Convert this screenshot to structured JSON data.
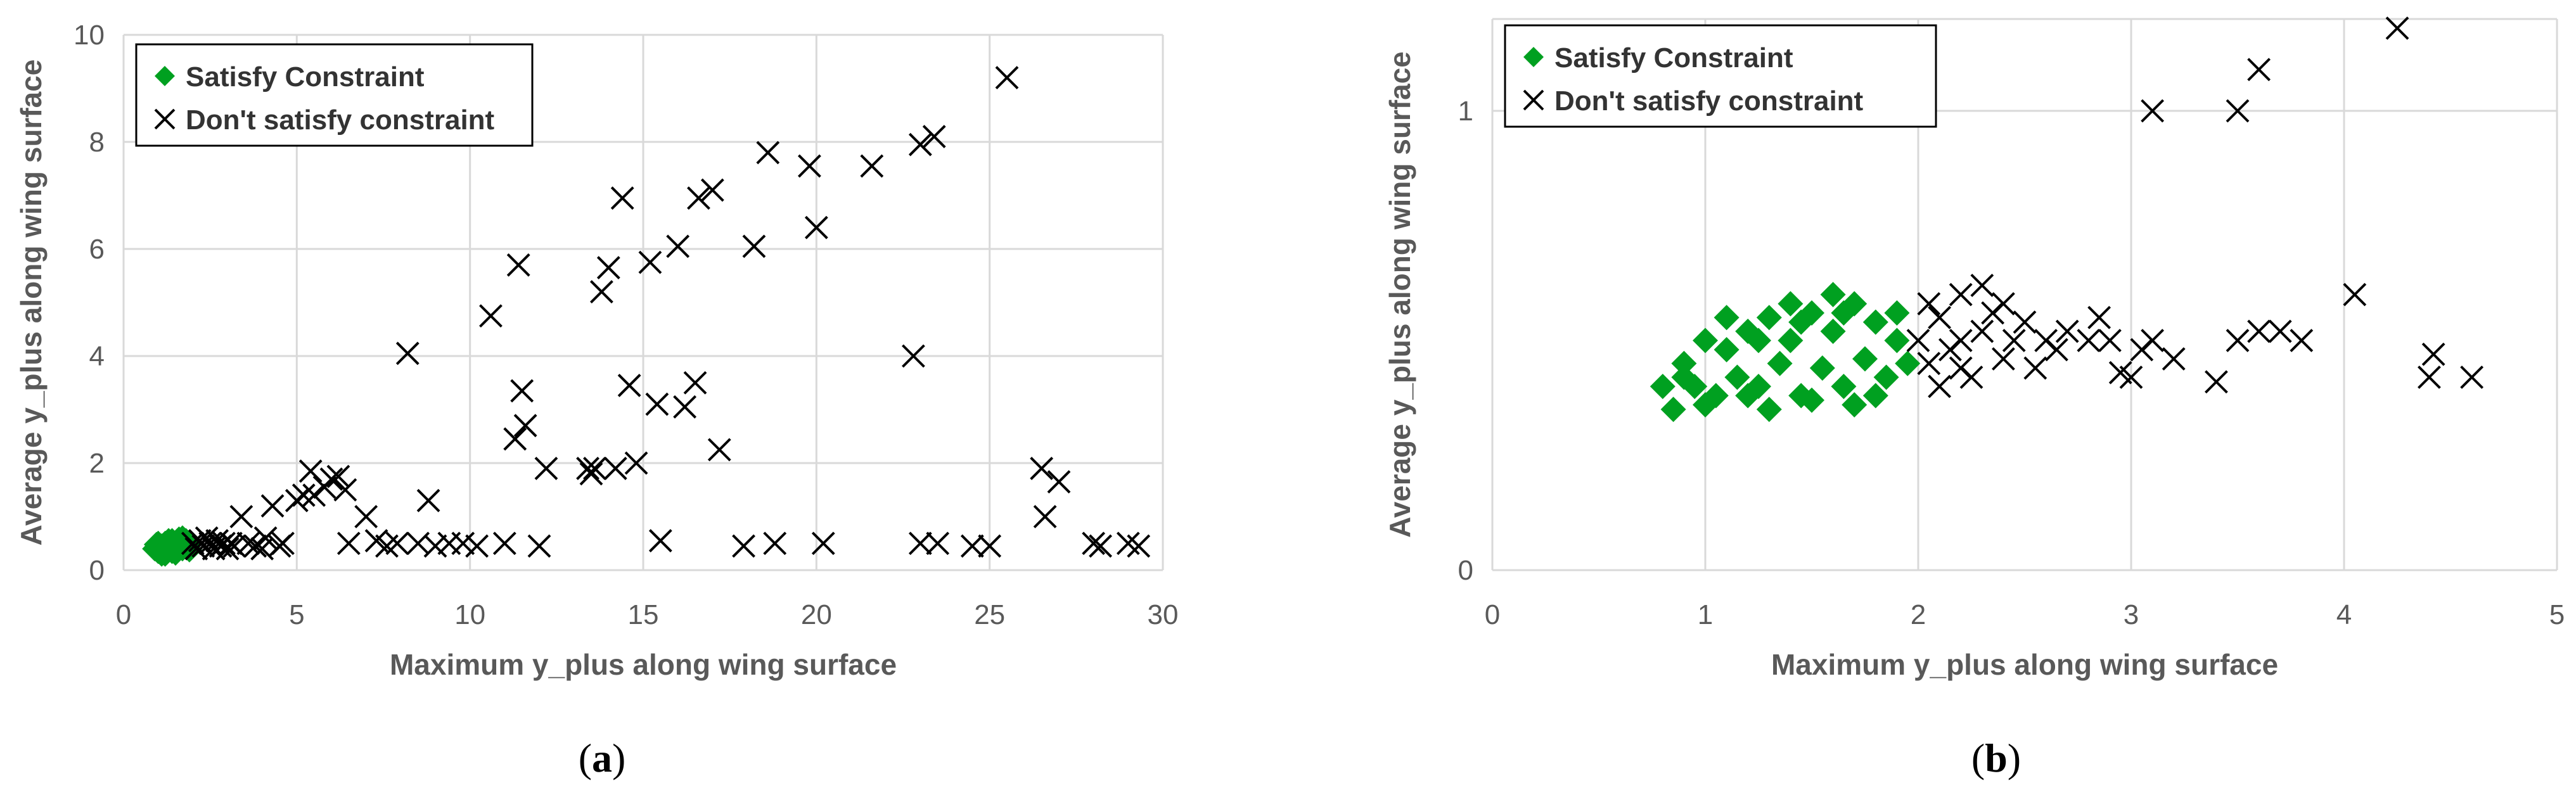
{
  "chart_data": [
    {
      "type": "scatter",
      "panel_label": "a",
      "xlabel": "Maximum y_plus along wing surface",
      "ylabel": "Average y_plus along wing surface",
      "xlim": [
        0,
        30
      ],
      "ylim": [
        0,
        10
      ],
      "xticks": [
        "0",
        "5",
        "10",
        "15",
        "20",
        "25",
        "30"
      ],
      "yticks": [
        "0",
        "2",
        "4",
        "6",
        "8",
        "10"
      ],
      "grid": true,
      "legend_position": "top-left",
      "series": [
        {
          "name": "Satisfy Constraint",
          "marker": "diamond",
          "color": "#00a020",
          "points": [
            [
              0.9,
              0.4
            ],
            [
              1.0,
              0.35
            ],
            [
              1.1,
              0.45
            ],
            [
              1.2,
              0.5
            ],
            [
              1.3,
              0.4
            ],
            [
              1.4,
              0.55
            ],
            [
              1.5,
              0.45
            ],
            [
              1.6,
              0.5
            ],
            [
              1.7,
              0.4
            ],
            [
              1.8,
              0.55
            ],
            [
              1.9,
              0.5
            ],
            [
              1.0,
              0.5
            ],
            [
              1.2,
              0.3
            ],
            [
              1.4,
              0.35
            ],
            [
              1.6,
              0.58
            ],
            [
              1.8,
              0.45
            ],
            [
              1.3,
              0.55
            ],
            [
              1.5,
              0.32
            ],
            [
              1.1,
              0.3
            ],
            [
              1.7,
              0.6
            ],
            [
              1.9,
              0.38
            ],
            [
              0.95,
              0.48
            ],
            [
              1.25,
              0.42
            ],
            [
              1.55,
              0.52
            ],
            [
              1.85,
              0.42
            ]
          ]
        },
        {
          "name": "Don't satisfy constraint",
          "marker": "x",
          "color": "#000000",
          "points": [
            [
              2.0,
              0.5
            ],
            [
              2.1,
              0.4
            ],
            [
              2.2,
              0.55
            ],
            [
              2.3,
              0.45
            ],
            [
              2.4,
              0.6
            ],
            [
              2.5,
              0.5
            ],
            [
              2.6,
              0.4
            ],
            [
              2.7,
              0.55
            ],
            [
              2.8,
              0.45
            ],
            [
              2.9,
              0.5
            ],
            [
              3.0,
              0.4
            ],
            [
              3.1,
              0.5
            ],
            [
              3.2,
              0.45
            ],
            [
              3.4,
              1.0
            ],
            [
              3.6,
              0.5
            ],
            [
              3.8,
              0.45
            ],
            [
              4.0,
              0.4
            ],
            [
              4.1,
              0.6
            ],
            [
              4.3,
              1.2
            ],
            [
              4.5,
              0.45
            ],
            [
              4.6,
              0.5
            ],
            [
              5.0,
              1.3
            ],
            [
              5.2,
              1.4
            ],
            [
              5.4,
              1.85
            ],
            [
              5.5,
              1.4
            ],
            [
              5.8,
              1.55
            ],
            [
              6.0,
              1.7
            ],
            [
              6.2,
              1.75
            ],
            [
              6.4,
              1.5
            ],
            [
              6.5,
              0.5
            ],
            [
              7.0,
              1.0
            ],
            [
              7.3,
              0.55
            ],
            [
              7.6,
              0.45
            ],
            [
              7.9,
              0.5
            ],
            [
              8.2,
              4.05
            ],
            [
              8.5,
              0.5
            ],
            [
              8.8,
              1.3
            ],
            [
              9.0,
              0.45
            ],
            [
              9.4,
              0.5
            ],
            [
              9.8,
              0.5
            ],
            [
              10.2,
              0.45
            ],
            [
              10.6,
              4.75
            ],
            [
              11.0,
              0.5
            ],
            [
              11.3,
              2.45
            ],
            [
              11.4,
              5.7
            ],
            [
              11.5,
              3.35
            ],
            [
              11.6,
              2.7
            ],
            [
              12.0,
              0.45
            ],
            [
              12.2,
              1.9
            ],
            [
              13.4,
              1.9
            ],
            [
              13.5,
              1.8
            ],
            [
              13.6,
              1.9
            ],
            [
              13.8,
              5.2
            ],
            [
              14.0,
              5.65
            ],
            [
              14.2,
              1.9
            ],
            [
              14.4,
              6.95
            ],
            [
              14.6,
              3.45
            ],
            [
              14.8,
              2.0
            ],
            [
              15.2,
              5.75
            ],
            [
              15.4,
              3.1
            ],
            [
              15.5,
              0.55
            ],
            [
              16.0,
              6.05
            ],
            [
              16.2,
              3.05
            ],
            [
              16.5,
              3.5
            ],
            [
              16.6,
              6.95
            ],
            [
              17.0,
              7.1
            ],
            [
              17.2,
              2.25
            ],
            [
              17.9,
              0.45
            ],
            [
              18.2,
              6.05
            ],
            [
              18.6,
              7.8
            ],
            [
              18.8,
              0.5
            ],
            [
              19.8,
              7.55
            ],
            [
              20.0,
              6.4
            ],
            [
              20.2,
              0.5
            ],
            [
              21.6,
              7.55
            ],
            [
              22.8,
              4.0
            ],
            [
              23.0,
              7.95
            ],
            [
              23.4,
              8.1
            ],
            [
              23.0,
              0.5
            ],
            [
              23.5,
              0.5
            ],
            [
              24.5,
              0.45
            ],
            [
              25.0,
              0.45
            ],
            [
              25.5,
              9.2
            ],
            [
              26.5,
              1.9
            ],
            [
              26.6,
              1.0
            ],
            [
              27.0,
              1.65
            ],
            [
              28.0,
              0.5
            ],
            [
              28.2,
              0.45
            ],
            [
              29.0,
              0.5
            ],
            [
              29.3,
              0.45
            ]
          ]
        }
      ]
    },
    {
      "type": "scatter",
      "panel_label": "b",
      "xlabel": "Maximum y_plus along wing surface",
      "ylabel": "Average y_plus along wing surface",
      "xlim": [
        0,
        5
      ],
      "ylim": [
        0,
        1.2
      ],
      "xticks": [
        "0",
        "1",
        "2",
        "3",
        "4",
        "5"
      ],
      "yticks": [
        "0",
        "1"
      ],
      "ytick_values": [
        0,
        1
      ],
      "grid": true,
      "legend_position": "top-left",
      "series": [
        {
          "name": "Satisfy Constraint",
          "marker": "diamond",
          "color": "#00a020",
          "points": [
            [
              0.8,
              0.4
            ],
            [
              0.85,
              0.35
            ],
            [
              0.9,
              0.45
            ],
            [
              0.95,
              0.4
            ],
            [
              1.0,
              0.5
            ],
            [
              1.05,
              0.38
            ],
            [
              1.1,
              0.48
            ],
            [
              1.15,
              0.42
            ],
            [
              1.2,
              0.52
            ],
            [
              1.25,
              0.4
            ],
            [
              1.3,
              0.55
            ],
            [
              1.35,
              0.45
            ],
            [
              1.4,
              0.5
            ],
            [
              1.45,
              0.38
            ],
            [
              1.5,
              0.56
            ],
            [
              1.55,
              0.44
            ],
            [
              1.6,
              0.52
            ],
            [
              1.65,
              0.4
            ],
            [
              1.7,
              0.58
            ],
            [
              1.75,
              0.46
            ],
            [
              1.8,
              0.54
            ],
            [
              1.85,
              0.42
            ],
            [
              1.9,
              0.5
            ],
            [
              1.95,
              0.45
            ],
            [
              1.0,
              0.36
            ],
            [
              1.2,
              0.38
            ],
            [
              1.4,
              0.58
            ],
            [
              1.6,
              0.6
            ],
            [
              1.8,
              0.38
            ],
            [
              1.3,
              0.35
            ],
            [
              1.5,
              0.37
            ],
            [
              1.7,
              0.36
            ],
            [
              0.9,
              0.42
            ],
            [
              1.1,
              0.55
            ],
            [
              1.9,
              0.56
            ],
            [
              1.25,
              0.5
            ],
            [
              1.45,
              0.54
            ],
            [
              1.65,
              0.56
            ]
          ]
        },
        {
          "name": "Don't satisfy constraint",
          "marker": "x",
          "color": "#000000",
          "points": [
            [
              2.0,
              0.5
            ],
            [
              2.05,
              0.45
            ],
            [
              2.1,
              0.55
            ],
            [
              2.15,
              0.48
            ],
            [
              2.2,
              0.6
            ],
            [
              2.25,
              0.42
            ],
            [
              2.3,
              0.52
            ],
            [
              2.35,
              0.56
            ],
            [
              2.4,
              0.46
            ],
            [
              2.45,
              0.5
            ],
            [
              2.5,
              0.54
            ],
            [
              2.55,
              0.44
            ],
            [
              2.6,
              0.5
            ],
            [
              2.65,
              0.48
            ],
            [
              2.7,
              0.52
            ],
            [
              2.8,
              0.5
            ],
            [
              2.85,
              0.55
            ],
            [
              2.9,
              0.5
            ],
            [
              2.95,
              0.43
            ],
            [
              3.0,
              0.42
            ],
            [
              3.05,
              0.48
            ],
            [
              3.1,
              0.5
            ],
            [
              3.1,
              1.0
            ],
            [
              3.2,
              0.46
            ],
            [
              3.4,
              0.41
            ],
            [
              3.5,
              0.5
            ],
            [
              3.5,
              1.0
            ],
            [
              3.6,
              0.52
            ],
            [
              3.6,
              1.09
            ],
            [
              3.7,
              0.52
            ],
            [
              3.8,
              0.5
            ],
            [
              4.05,
              0.6
            ],
            [
              4.25,
              1.18
            ],
            [
              4.4,
              0.42
            ],
            [
              4.42,
              0.47
            ],
            [
              4.6,
              0.42
            ],
            [
              2.1,
              0.4
            ],
            [
              2.2,
              0.44
            ],
            [
              2.3,
              0.62
            ],
            [
              2.05,
              0.58
            ],
            [
              2.4,
              0.58
            ],
            [
              2.2,
              0.5
            ]
          ]
        }
      ]
    }
  ]
}
